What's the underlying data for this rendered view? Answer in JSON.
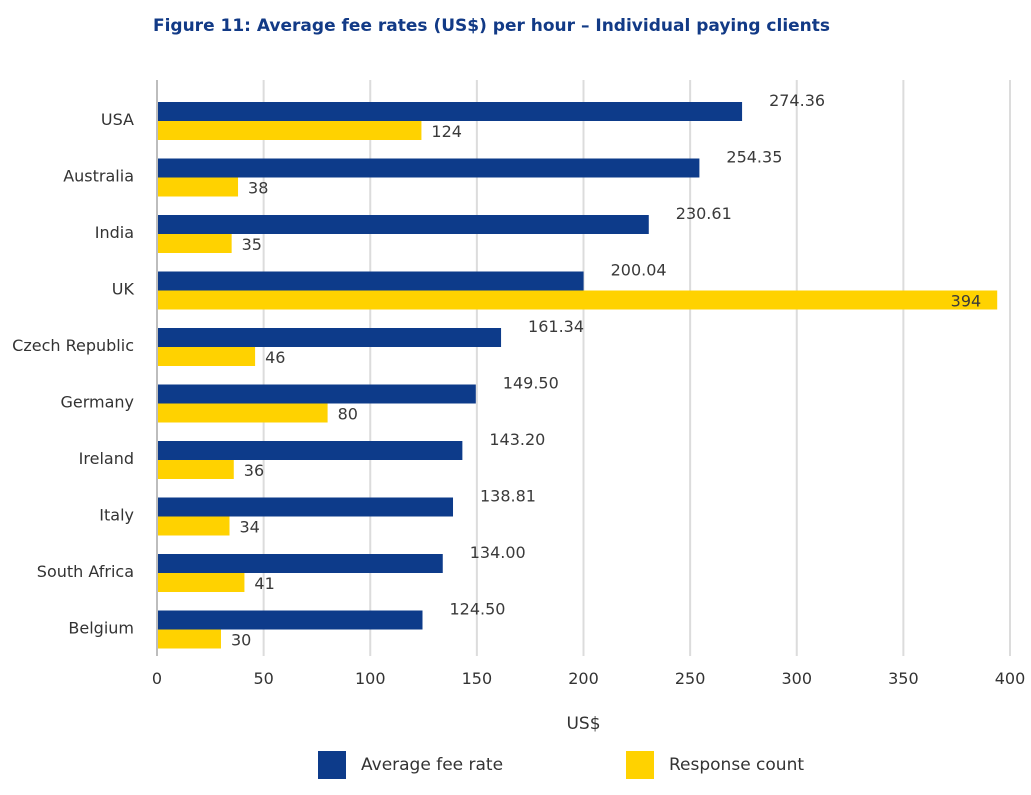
{
  "chart_data": {
    "type": "bar",
    "orientation": "horizontal",
    "title": "Figure 11: Average fee rates (US$) per hour – Individual paying clients",
    "xlabel": "US$",
    "ylabel": "",
    "xlim": [
      0,
      400
    ],
    "x_ticks": [
      "0",
      "50",
      "100",
      "150",
      "200",
      "250",
      "300",
      "350",
      "400"
    ],
    "grid": "vertical",
    "legend_position": "bottom",
    "categories": [
      "USA",
      "Australia",
      "India",
      "UK",
      "Czech Republic",
      "Germany",
      "Ireland",
      "Italy",
      "South Africa",
      "Belgium"
    ],
    "series": [
      {
        "name": "Average fee rate",
        "color": "#0d3b8a",
        "values": [
          274.36,
          254.35,
          230.61,
          200.04,
          161.34,
          149.5,
          143.2,
          138.81,
          134.0,
          124.5
        ],
        "labels": [
          "274.36",
          "254.35",
          "230.61",
          "200.04",
          "161.34",
          "149.50",
          "143.20",
          "138.81",
          "134.00",
          "124.50"
        ]
      },
      {
        "name": "Response count",
        "color": "#ffd200",
        "values": [
          124,
          38,
          35,
          394,
          46,
          80,
          36,
          34,
          41,
          30
        ],
        "labels": [
          "124",
          "38",
          "35",
          "394",
          "46",
          "80",
          "36",
          "34",
          "41",
          "30"
        ]
      }
    ]
  }
}
